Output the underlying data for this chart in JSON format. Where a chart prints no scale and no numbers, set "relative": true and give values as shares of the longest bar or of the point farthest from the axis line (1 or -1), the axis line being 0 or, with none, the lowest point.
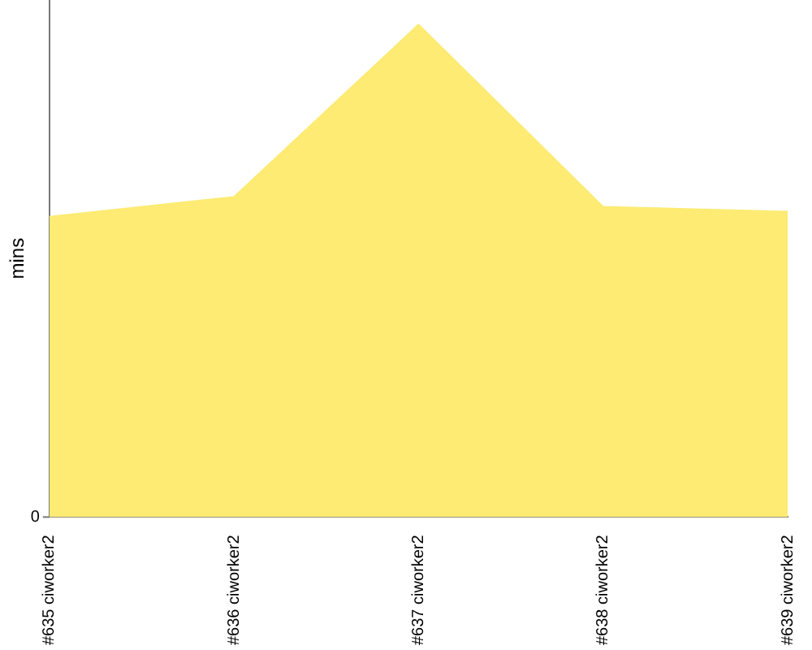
{
  "chart_data": {
    "type": "area",
    "ylabel": "mins",
    "relative": true,
    "grid": false,
    "legend": false,
    "categories": [
      "#635 ciworker2",
      "#636 ciworker2",
      "#637 ciworker2",
      "#638 ciworker2",
      "#639 ciworker2"
    ],
    "series": [
      {
        "color": "#fdeb73",
        "values": [
          0.61,
          0.65,
          1,
          0.63,
          0.62
        ]
      }
    ],
    "annotations": [
      "0"
    ]
  }
}
